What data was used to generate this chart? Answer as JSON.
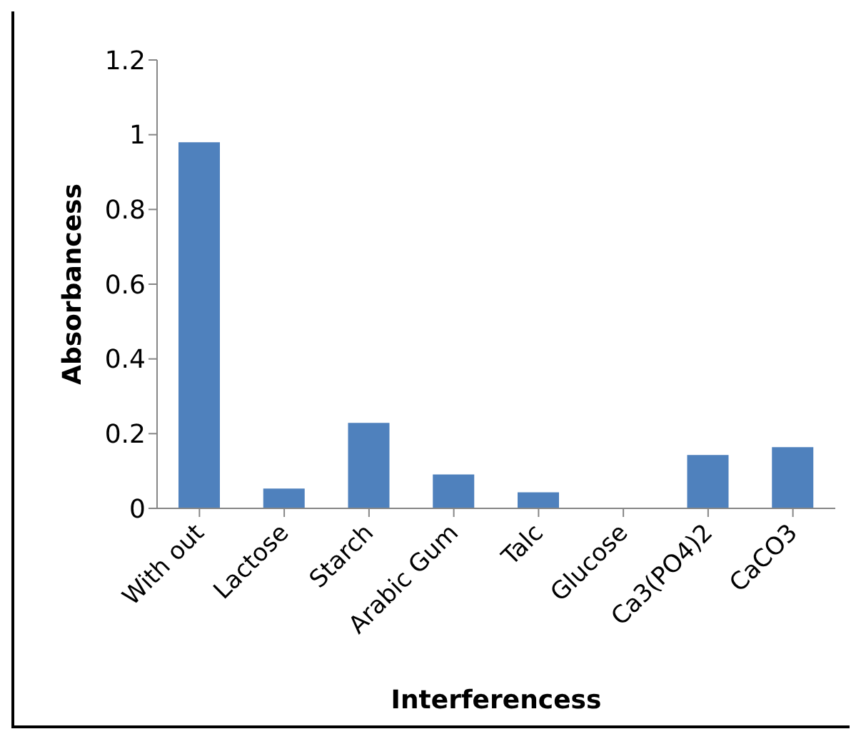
{
  "chart_data": {
    "type": "bar",
    "xlabel": "Interferencess",
    "ylabel": "Absorbancess",
    "categories": [
      "With out",
      "Lactose",
      "Starch",
      "Arabic Gum",
      "Talc",
      "Glucose",
      "Ca3(PO4)2",
      "CaCO3"
    ],
    "values": [
      0.98,
      0.053,
      0.229,
      0.091,
      0.043,
      0,
      0.143,
      0.164
    ],
    "color": "#4f81bd",
    "ylim": [
      0,
      1.2
    ],
    "yticks": [
      0,
      0.2,
      0.4,
      0.6,
      0.8,
      1,
      1.2
    ]
  }
}
